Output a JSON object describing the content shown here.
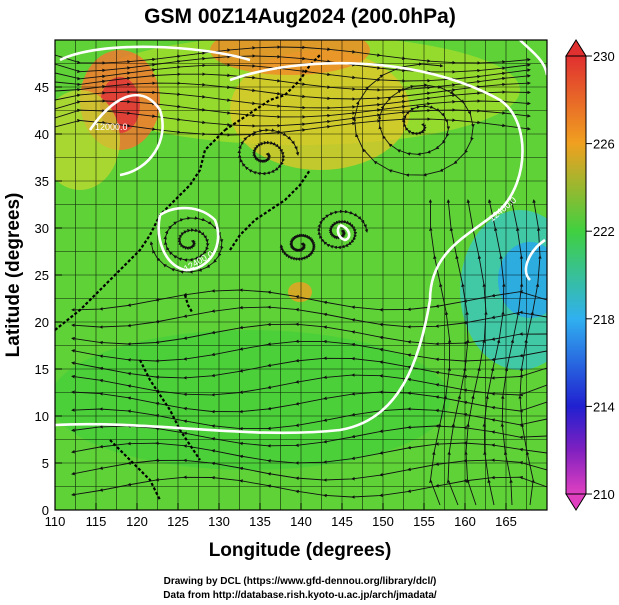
{
  "title": "GSM 00Z14Aug2024 (200.0hPa)",
  "x_axis": {
    "label": "Longitude (degrees)",
    "ticks": [
      "110",
      "115",
      "120",
      "125",
      "130",
      "135",
      "140",
      "145",
      "150",
      "155",
      "160",
      "165"
    ]
  },
  "y_axis": {
    "label": "Latitude  (degrees)",
    "ticks": [
      "0",
      "5",
      "10",
      "15",
      "20",
      "25",
      "30",
      "35",
      "40",
      "45"
    ]
  },
  "colorbar": {
    "ticks": [
      "210",
      "214",
      "218",
      "222",
      "226",
      "230"
    ]
  },
  "contour_labels": [
    "12000.0",
    "12400.0",
    "12400.0"
  ],
  "credits": {
    "line1": "Drawing by DCL (https://www.gfd-dennou.org/library/dcl/)",
    "line2": "Data from http://database.rish.kyoto-u.ac.jp/arch/jmadata/"
  },
  "chart_data": {
    "type": "heatmap",
    "title": "GSM 00Z14Aug2024 (200.0hPa)",
    "xlabel": "Longitude (degrees)",
    "ylabel": "Latitude  (degrees)",
    "xlim": [
      110,
      170
    ],
    "ylim": [
      0,
      50
    ],
    "colorbar_range": [
      210,
      230
    ],
    "colorbar_ticks": [
      210,
      214,
      218,
      222,
      226,
      230
    ],
    "color_scale": [
      "#e040c0",
      "#2020d0",
      "#30b0f0",
      "#40d040",
      "#f0a020",
      "#e03030"
    ],
    "grid": true,
    "overlays": [
      "streamlines",
      "geopotential contours",
      "coastlines"
    ]
  }
}
